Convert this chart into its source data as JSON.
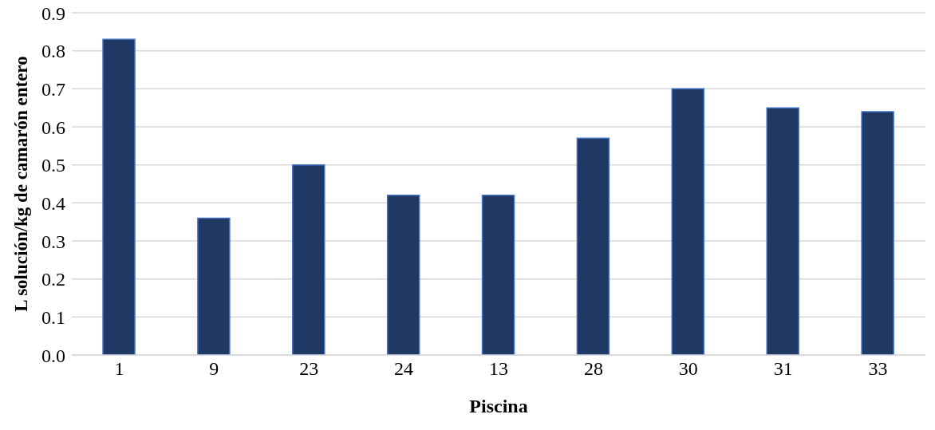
{
  "chart_data": {
    "type": "bar",
    "xlabel": "Piscina",
    "ylabel": "L solución/kg de camarón entero",
    "categories": [
      "1",
      "9",
      "23",
      "24",
      "13",
      "28",
      "30",
      "31",
      "33"
    ],
    "values": [
      0.83,
      0.36,
      0.5,
      0.42,
      0.42,
      0.57,
      0.7,
      0.65,
      0.64
    ],
    "color": "#203864",
    "ylim": [
      0,
      0.9
    ],
    "yticks": [
      {
        "value": 0,
        "label": "0.0"
      },
      0.1,
      0.2,
      0.3,
      0.4,
      0.5,
      0.6,
      0.7,
      0.8,
      0.9
    ],
    "grid": "y"
  }
}
